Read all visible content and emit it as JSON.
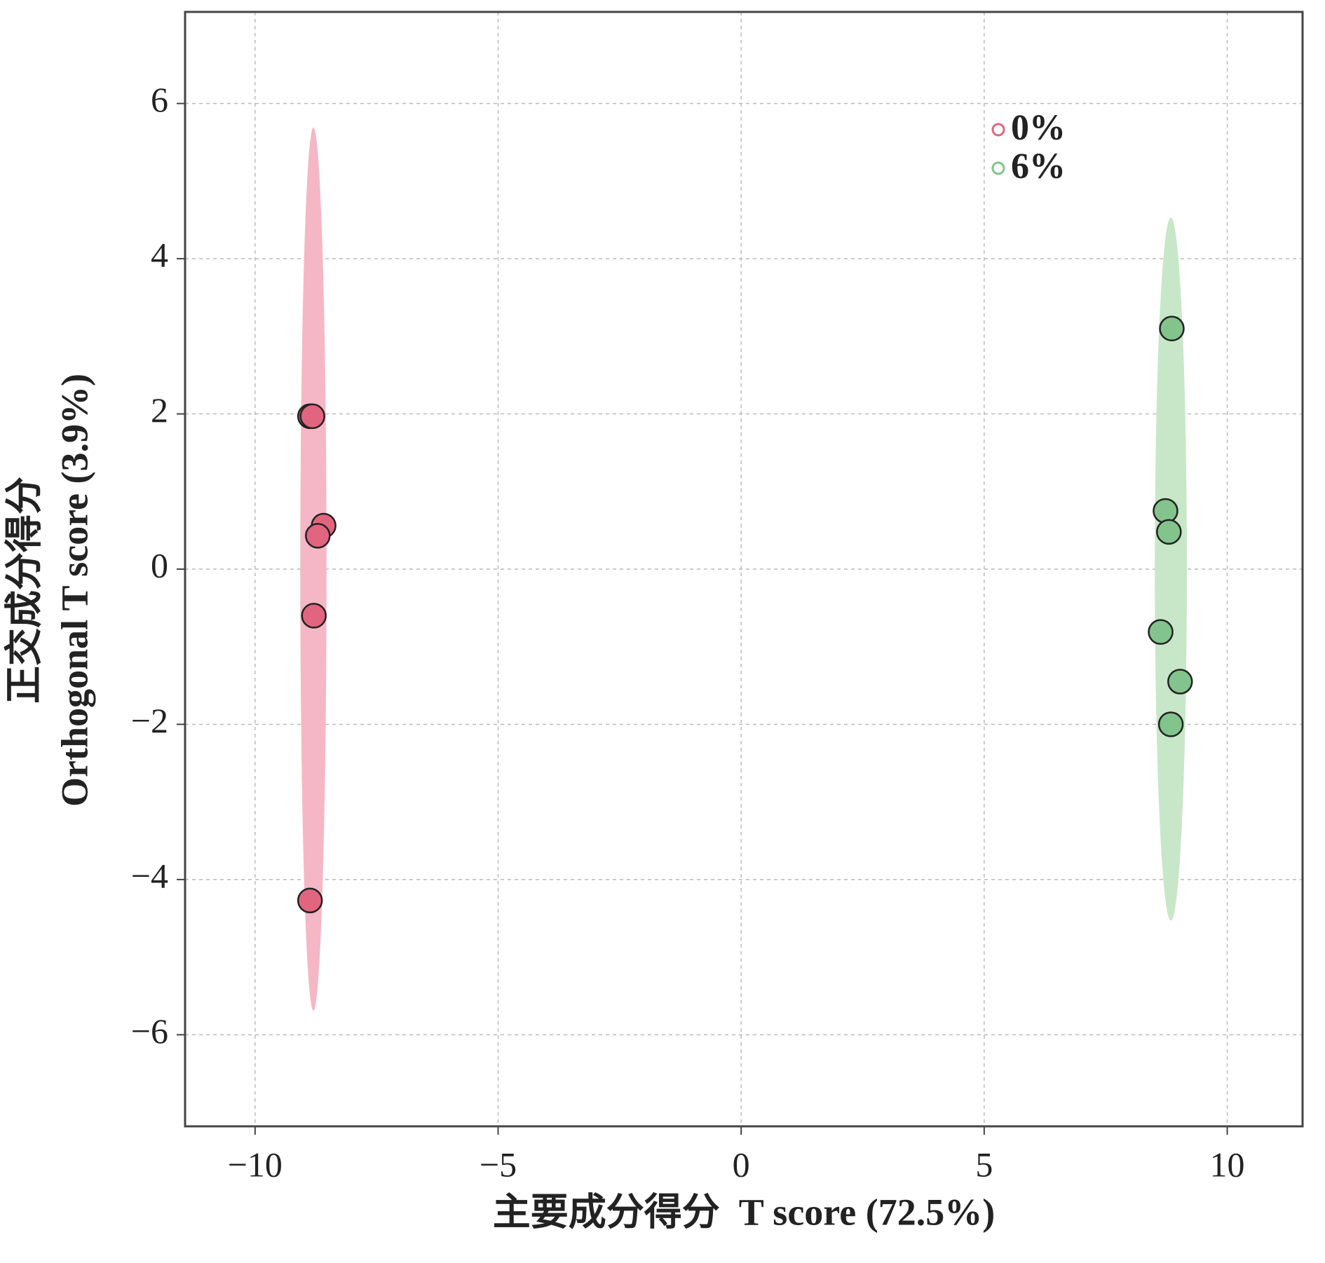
{
  "chart_data": {
    "type": "scatter",
    "xlabel": "主要成分得分  T score (72.5%)",
    "ylabel": [
      "正交成分得分",
      "Orthogonal T score (3.9%)"
    ],
    "xlim": [
      -11.44,
      11.55
    ],
    "ylim": [
      -7.18,
      7.18
    ],
    "xticks": [
      {
        "value": -10,
        "label": "−10"
      },
      {
        "value": -5,
        "label": "−5"
      },
      0,
      5,
      10
    ],
    "yticks": [
      {
        "value": -6,
        "label": "−6"
      },
      {
        "value": -4,
        "label": "−4"
      },
      {
        "value": -2,
        "label": "−2"
      },
      0,
      2,
      4,
      6
    ],
    "grid": true,
    "legend": "top-right",
    "series": [
      {
        "name": "0%",
        "color": "#e26580",
        "ellipse_color": "#f5b7c5",
        "x": [
          -8.87,
          -8.82,
          -8.59,
          -8.71,
          -8.79,
          -8.87
        ],
        "y": [
          1.97,
          1.97,
          0.56,
          0.43,
          -0.6,
          -4.27
        ],
        "ellipse": {
          "cx": -8.8,
          "cy": 0,
          "rx": 0.27,
          "ry": 5.69
        }
      },
      {
        "name": "6%",
        "color": "#82c48c",
        "ellipse_color": "#c8e7c8",
        "x": [
          8.86,
          8.73,
          8.8,
          8.63,
          9.03,
          8.84
        ],
        "y": [
          3.1,
          0.75,
          0.48,
          -0.81,
          -1.45,
          -2.0
        ],
        "ellipse": {
          "cx": 8.84,
          "cy": 0,
          "rx": 0.33,
          "ry": 4.53
        }
      }
    ]
  }
}
